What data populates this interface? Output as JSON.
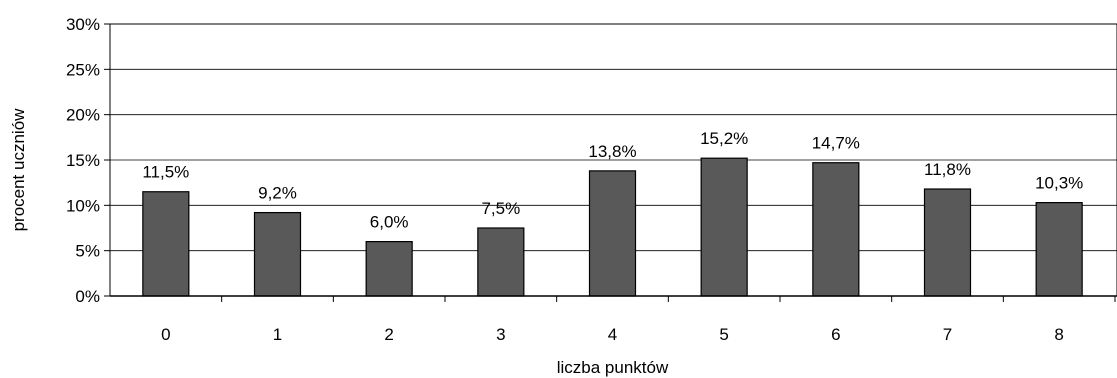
{
  "chart_data": {
    "type": "bar",
    "categories": [
      "0",
      "1",
      "2",
      "3",
      "4",
      "5",
      "6",
      "7",
      "8"
    ],
    "values": [
      11.5,
      9.2,
      6.0,
      7.5,
      13.8,
      15.2,
      14.7,
      11.8,
      10.3
    ],
    "data_labels": [
      "11,5%",
      "9,2%",
      "6,0%",
      "7,5%",
      "13,8%",
      "15,2%",
      "14,7%",
      "11,8%",
      "10,3%"
    ],
    "y_ticks": [
      "0%",
      "5%",
      "10%",
      "15%",
      "20%",
      "25%",
      "30%"
    ],
    "ylim": [
      0,
      30
    ],
    "xlabel": "liczba punktów",
    "ylabel": "procent uczniów",
    "grid": "horizontal",
    "bar_color": "#595959"
  }
}
